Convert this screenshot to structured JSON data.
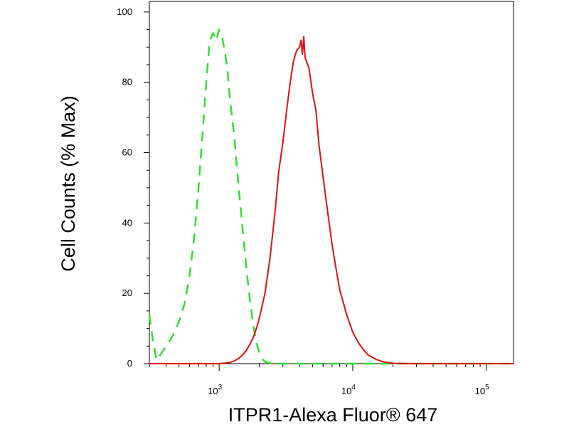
{
  "chart_data": {
    "type": "line",
    "title": "",
    "xlabel": "ITPR1-Alexa Fluor® 647",
    "ylabel": "Cell Counts (% Max)",
    "x_scale": "log",
    "xlim": [
      300,
      160000
    ],
    "ylim": [
      0,
      103
    ],
    "grid": false,
    "x_ticks": [
      {
        "value": 1000,
        "base": "10",
        "exp": "3"
      },
      {
        "value": 10000,
        "base": "10",
        "exp": "4"
      },
      {
        "value": 100000,
        "base": "10",
        "exp": "5"
      }
    ],
    "y_ticks": [
      0,
      20,
      40,
      60,
      80,
      100
    ],
    "series": [
      {
        "color": "#33dd33",
        "line_style": "dashed",
        "x": [
          300,
          320,
          340,
          370,
          400,
          450,
          500,
          550,
          600,
          650,
          700,
          750,
          800,
          850,
          900,
          950,
          1000,
          1050,
          1100,
          1150,
          1200,
          1300,
          1400,
          1500,
          1600,
          1700,
          1800,
          1900,
          2000,
          2100,
          2200,
          2400,
          2600,
          3000,
          4000,
          6000,
          10000,
          30000,
          160000
        ],
        "y": [
          14,
          6,
          1,
          3,
          5,
          8,
          12,
          17,
          25,
          36,
          50,
          65,
          80,
          92,
          94,
          92,
          95,
          93,
          89,
          84,
          76,
          64,
          50,
          38,
          27,
          18,
          11,
          6,
          3,
          1.5,
          0.5,
          0.2,
          0,
          0,
          0,
          0,
          0,
          0,
          0
        ]
      },
      {
        "color": "#dd1111",
        "line_style": "solid",
        "x": [
          300,
          700,
          1000,
          1200,
          1300,
          1400,
          1500,
          1600,
          1700,
          1800,
          1900,
          2000,
          2200,
          2400,
          2600,
          2800,
          3000,
          3200,
          3400,
          3600,
          3800,
          4000,
          4100,
          4200,
          4300,
          4400,
          4500,
          4700,
          5000,
          5300,
          5600,
          6000,
          6500,
          7000,
          7500,
          8000,
          9000,
          10000,
          11000,
          12000,
          13000,
          15000,
          17000,
          20000,
          30000,
          160000
        ],
        "y": [
          0,
          0,
          0,
          0.3,
          0.8,
          1.5,
          2.5,
          3.8,
          5.5,
          7.5,
          10,
          13,
          20,
          30,
          42,
          55,
          63,
          72,
          80,
          86,
          89,
          90,
          92,
          88,
          93,
          87,
          86,
          84,
          77,
          72,
          62,
          53,
          43,
          34,
          27,
          21,
          14,
          9,
          6,
          4,
          2.5,
          1.2,
          0.5,
          0.1,
          0,
          0
        ]
      }
    ]
  }
}
